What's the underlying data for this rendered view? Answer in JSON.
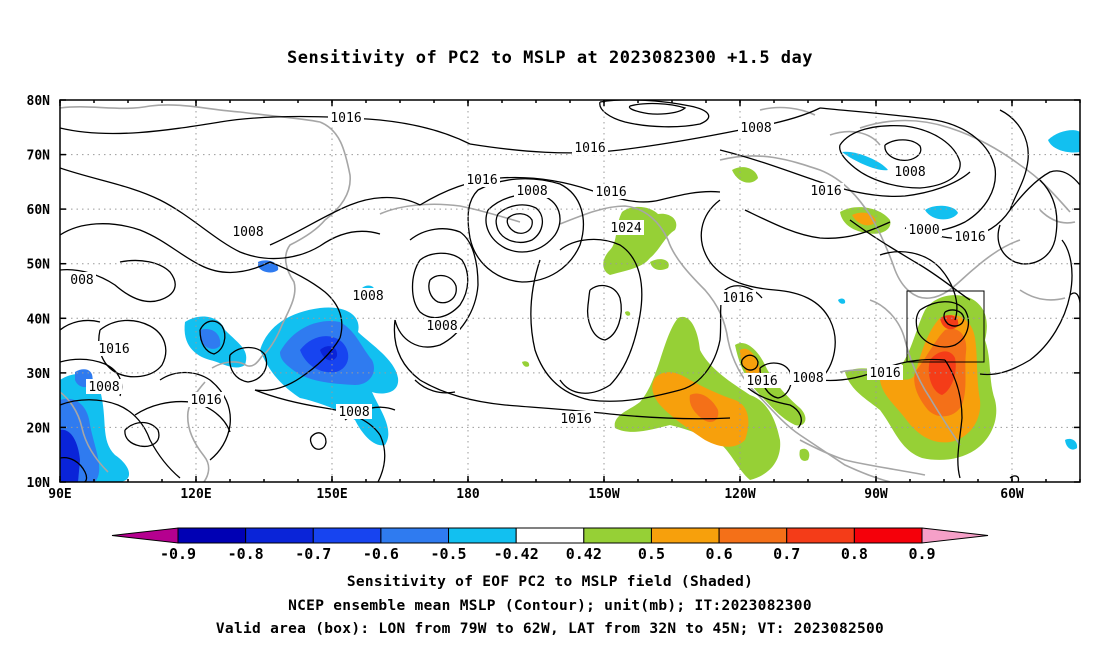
{
  "title": "Sensitivity of PC2 to MSLP at 2023082300 +1.5 day",
  "lat_labels": [
    "80N",
    "70N",
    "60N",
    "50N",
    "40N",
    "30N",
    "20N",
    "10N"
  ],
  "lon_labels": [
    "90E",
    "120E",
    "150E",
    "180",
    "150W",
    "120W",
    "90W",
    "60W"
  ],
  "contour_labels": [
    "1016",
    "1008",
    "1016",
    "1016",
    "1008",
    "1016",
    "1000",
    "1016",
    "008",
    "1008",
    "1016",
    "1024",
    "1008",
    "1008",
    "1016",
    "1008",
    "1008",
    "1016",
    "1008",
    "1016",
    "1016",
    "1008",
    "1016",
    "1016"
  ],
  "colorbar": {
    "labels": [
      "-0.9",
      "-0.8",
      "-0.7",
      "-0.6",
      "-0.5",
      "-0.42",
      "0.42",
      "0.5",
      "0.6",
      "0.7",
      "0.8",
      "0.9"
    ],
    "colors": [
      "#b5008f",
      "#0000b4",
      "#0a24d8",
      "#1744f0",
      "#2f7bf0",
      "#12c0f0",
      "#ffffff",
      "#96d036",
      "#f7a00c",
      "#f47018",
      "#f43c18",
      "#f5000a",
      "#f5a0c8"
    ]
  },
  "captions": {
    "line1": "Sensitivity of EOF PC2 to MSLP field (Shaded)",
    "line2": "NCEP ensemble mean MSLP (Contour); unit(mb); IT:2023082300",
    "line3": "Valid area (box): LON from 79W to 62W, LAT from 32N to 45N; VT: 2023082500"
  }
}
